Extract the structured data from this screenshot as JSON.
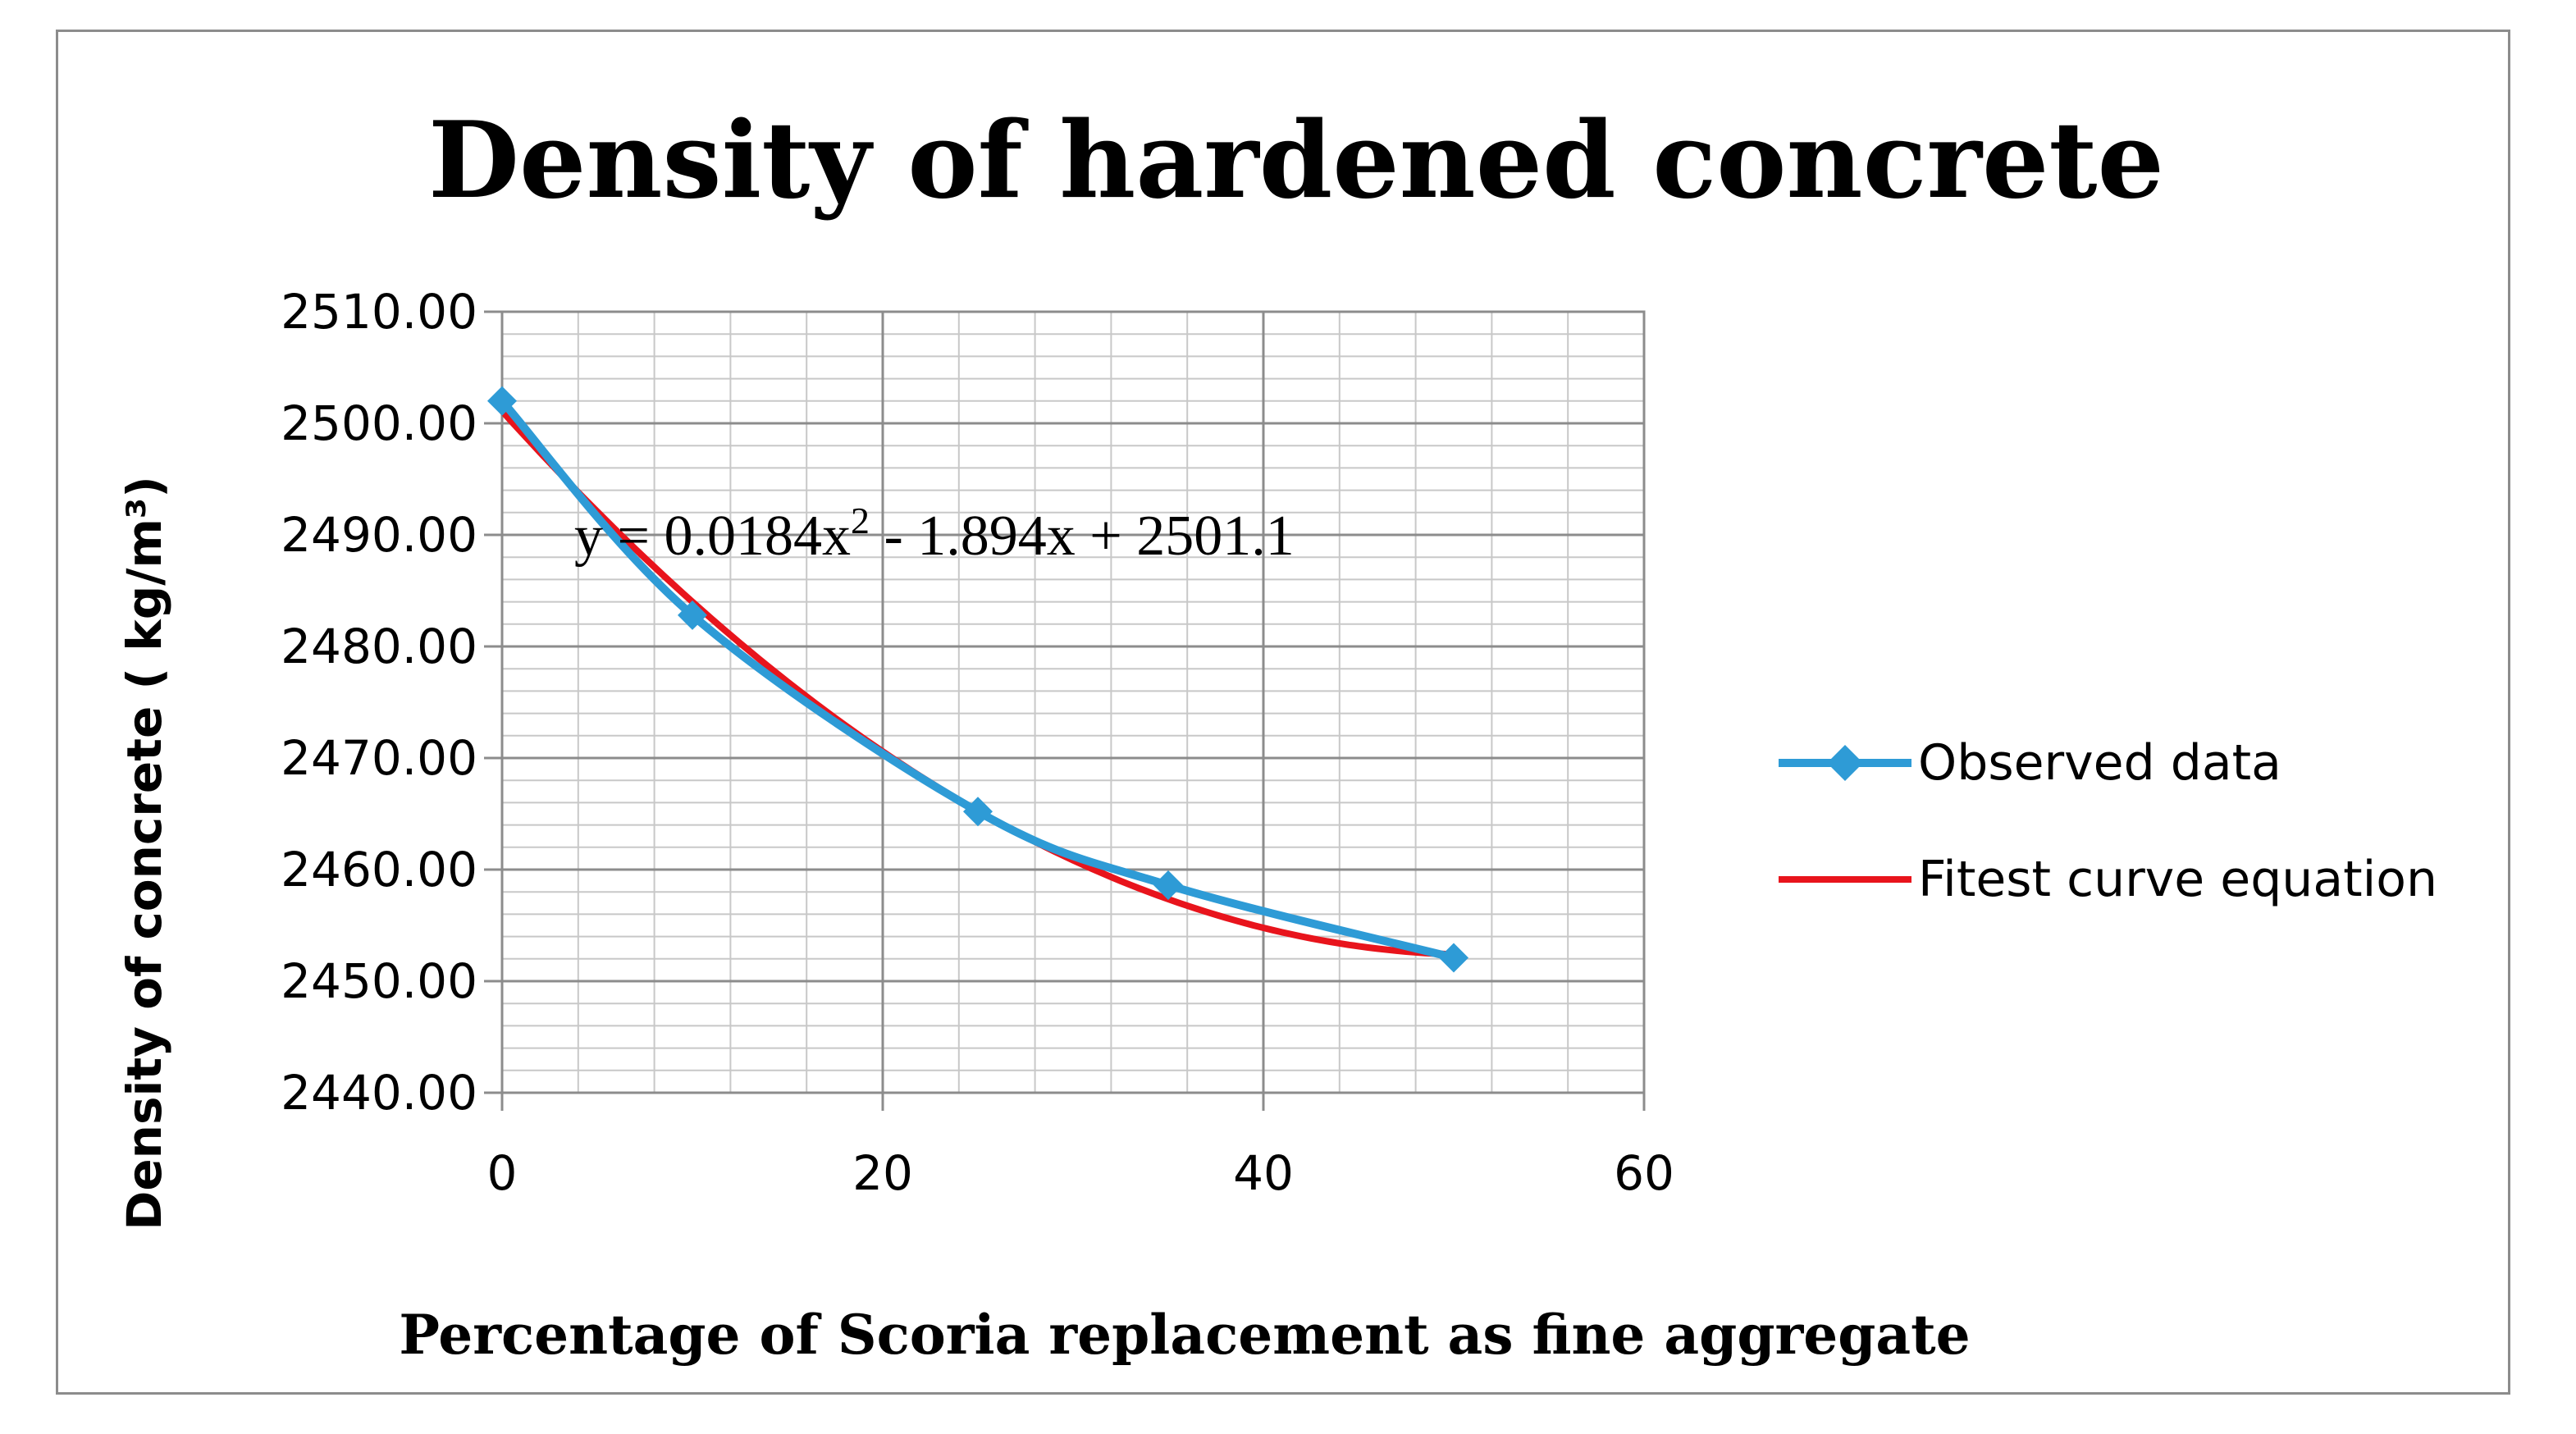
{
  "chart_data": {
    "type": "line",
    "title": "Density of hardened concrete",
    "xlabel": "Percentage of Scoria replacement as fine aggregate",
    "ylabel": "Density of concrete ( kg/m³)",
    "xlim": [
      0,
      60
    ],
    "ylim": [
      2440,
      2510
    ],
    "x_ticks": [
      0,
      20,
      40,
      60
    ],
    "x_tick_labels": [
      "0",
      "20",
      "40",
      "60"
    ],
    "y_ticks": [
      2440,
      2450,
      2460,
      2470,
      2480,
      2490,
      2500,
      2510
    ],
    "y_tick_labels": [
      "2440.00",
      "2450.00",
      "2460.00",
      "2470.00",
      "2480.00",
      "2490.00",
      "2500.00",
      "2510.00"
    ],
    "grid": true,
    "legend_position": "right",
    "annotation": "y = 0.0184x² - 1.894x + 2501.1",
    "series": [
      {
        "name": "Observed data",
        "style": "line-with-diamond-markers",
        "color": "#2e9bd6",
        "x": [
          0,
          10,
          25,
          35,
          50
        ],
        "y": [
          2502,
          2482.8,
          2465.2,
          2458.6,
          2452.1
        ]
      },
      {
        "name": "Fitest curve equation",
        "style": "line",
        "color": "#e8141c",
        "coefficients": {
          "a": 0.0184,
          "b": -1.894,
          "c": 2501.1
        },
        "x_range": [
          0,
          50
        ]
      }
    ]
  }
}
